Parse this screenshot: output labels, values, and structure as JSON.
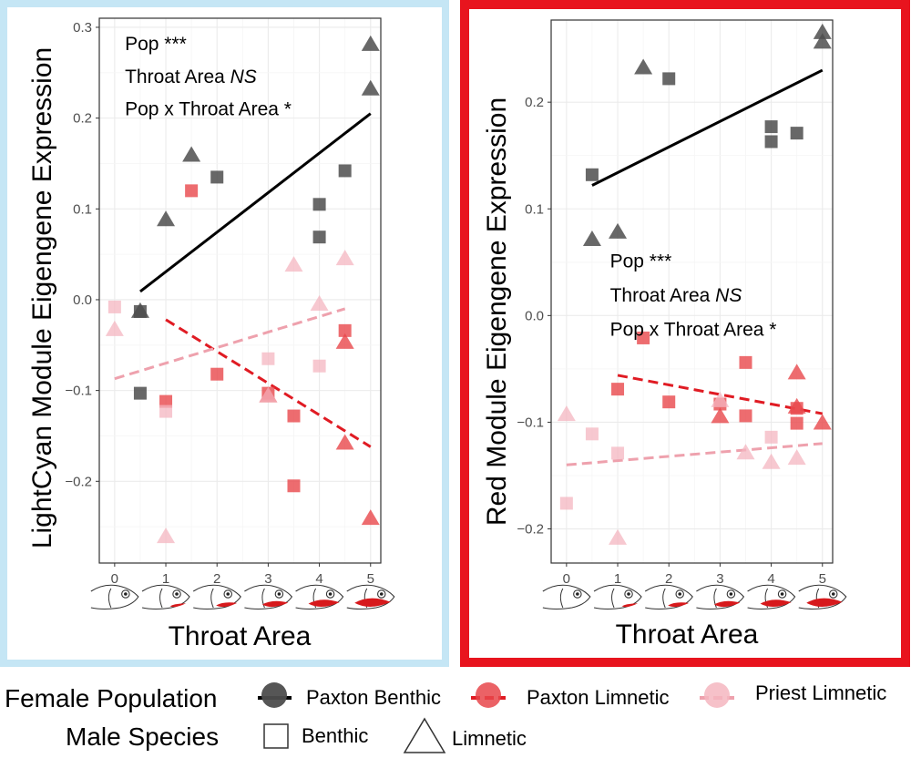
{
  "colors": {
    "paxton_benthic": "#4d4d4d",
    "paxton_limnetic": "#e8474b",
    "priest_limnetic": "#f4b6c0",
    "left_frame": "#c5e6f5",
    "right_frame": "#e8141e",
    "line_benthic": "#000000",
    "line_paxton_limnetic": "#e01b23",
    "line_priest_limnetic": "#eea1ad"
  },
  "chart_data": [
    {
      "type": "scatter",
      "id": "lightcyan",
      "xlabel": "Throat Area",
      "ylabel": "LightCyan Module Eigengene Expression",
      "xlim": [
        -0.3,
        5.2
      ],
      "ylim": [
        -0.29,
        0.31
      ],
      "xticks": [
        "0",
        "1",
        "2",
        "3",
        "4",
        "5"
      ],
      "yticks": [
        {
          "value": 0.3,
          "label": "0.3"
        },
        {
          "value": 0.2,
          "label": "0.2"
        },
        {
          "value": 0.1,
          "label": "0.1"
        },
        {
          "value": 0.0,
          "label": "0.0"
        },
        {
          "value": -0.1,
          "label": "−0.1"
        },
        {
          "value": -0.2,
          "label": "−0.2"
        }
      ],
      "annotation": [
        {
          "text": "Pop ***",
          "italic": ""
        },
        {
          "text": "Throat Area ",
          "italic": "NS"
        },
        {
          "text": "Pop x Throat Area *",
          "italic": ""
        }
      ],
      "annotation_pos": {
        "x": 0.2,
        "y": [
          0.283,
          0.247,
          0.211
        ]
      },
      "points": [
        {
          "pop": "paxton_benthic",
          "shape": "triangle",
          "x": 5,
          "y": 0.282
        },
        {
          "pop": "paxton_benthic",
          "shape": "triangle",
          "x": 5,
          "y": 0.233
        },
        {
          "pop": "paxton_benthic",
          "shape": "triangle",
          "x": 1.5,
          "y": 0.16
        },
        {
          "pop": "paxton_benthic",
          "shape": "triangle",
          "x": 1,
          "y": 0.089
        },
        {
          "pop": "paxton_benthic",
          "shape": "triangle",
          "x": 0.5,
          "y": -0.012
        },
        {
          "pop": "paxton_benthic",
          "shape": "square",
          "x": 4.5,
          "y": 0.142
        },
        {
          "pop": "paxton_benthic",
          "shape": "square",
          "x": 2,
          "y": 0.135
        },
        {
          "pop": "paxton_benthic",
          "shape": "square",
          "x": 4,
          "y": 0.105
        },
        {
          "pop": "paxton_benthic",
          "shape": "square",
          "x": 4,
          "y": 0.069
        },
        {
          "pop": "paxton_benthic",
          "shape": "square",
          "x": 0.5,
          "y": -0.013
        },
        {
          "pop": "paxton_benthic",
          "shape": "square",
          "x": 0.5,
          "y": -0.103
        },
        {
          "pop": "paxton_limnetic",
          "shape": "square",
          "x": 1.5,
          "y": 0.12
        },
        {
          "pop": "paxton_limnetic",
          "shape": "square",
          "x": 4.5,
          "y": -0.034
        },
        {
          "pop": "paxton_limnetic",
          "shape": "square",
          "x": 2,
          "y": -0.082
        },
        {
          "pop": "paxton_limnetic",
          "shape": "square",
          "x": 1,
          "y": -0.112
        },
        {
          "pop": "paxton_limnetic",
          "shape": "square",
          "x": 3,
          "y": -0.103
        },
        {
          "pop": "paxton_limnetic",
          "shape": "square",
          "x": 3.5,
          "y": -0.128
        },
        {
          "pop": "paxton_limnetic",
          "shape": "square",
          "x": 3.5,
          "y": -0.205
        },
        {
          "pop": "paxton_limnetic",
          "shape": "triangle",
          "x": 4.5,
          "y": -0.046
        },
        {
          "pop": "paxton_limnetic",
          "shape": "triangle",
          "x": 3,
          "y": -0.105
        },
        {
          "pop": "paxton_limnetic",
          "shape": "triangle",
          "x": 4.5,
          "y": -0.157
        },
        {
          "pop": "paxton_limnetic",
          "shape": "triangle",
          "x": 5,
          "y": -0.24
        },
        {
          "pop": "priest_limnetic",
          "shape": "square",
          "x": 0,
          "y": -0.008
        },
        {
          "pop": "priest_limnetic",
          "shape": "square",
          "x": 3,
          "y": -0.065
        },
        {
          "pop": "priest_limnetic",
          "shape": "square",
          "x": 4,
          "y": -0.073
        },
        {
          "pop": "priest_limnetic",
          "shape": "square",
          "x": 1,
          "y": -0.123
        },
        {
          "pop": "priest_limnetic",
          "shape": "triangle",
          "x": 4.5,
          "y": 0.046
        },
        {
          "pop": "priest_limnetic",
          "shape": "triangle",
          "x": 3.5,
          "y": 0.039
        },
        {
          "pop": "priest_limnetic",
          "shape": "triangle",
          "x": 4,
          "y": -0.004
        },
        {
          "pop": "priest_limnetic",
          "shape": "triangle",
          "x": 0,
          "y": -0.032
        },
        {
          "pop": "priest_limnetic",
          "shape": "triangle",
          "x": 3,
          "y": -0.105
        },
        {
          "pop": "priest_limnetic",
          "shape": "triangle",
          "x": 1,
          "y": -0.26
        }
      ],
      "fit_lines": [
        {
          "pop": "paxton_benthic",
          "dash": false,
          "x": [
            0.5,
            5
          ],
          "y": [
            0.009,
            0.205
          ]
        },
        {
          "pop": "paxton_limnetic",
          "dash": true,
          "x": [
            1,
            5
          ],
          "y": [
            -0.022,
            -0.162
          ]
        },
        {
          "pop": "priest_limnetic",
          "dash": true,
          "x": [
            0,
            4.5
          ],
          "y": [
            -0.087,
            -0.01
          ]
        }
      ]
    },
    {
      "type": "scatter",
      "id": "red",
      "xlabel": "Throat Area",
      "ylabel": "Red Module Eigengene Expression",
      "xlim": [
        -0.3,
        5.2
      ],
      "ylim": [
        -0.232,
        0.277
      ],
      "xticks": [
        "0",
        "1",
        "2",
        "3",
        "4",
        "5"
      ],
      "yticks": [
        {
          "value": 0.2,
          "label": "0.2"
        },
        {
          "value": 0.1,
          "label": "0.1"
        },
        {
          "value": 0.0,
          "label": "0.0"
        },
        {
          "value": -0.1,
          "label": "−0.1"
        },
        {
          "value": -0.2,
          "label": "−0.2"
        }
      ],
      "annotation": [
        {
          "text": "Pop ***",
          "italic": ""
        },
        {
          "text": "Throat Area ",
          "italic": "NS"
        },
        {
          "text": "Pop x Throat Area *",
          "italic": ""
        }
      ],
      "annotation_pos": {
        "x": 0.85,
        "y": [
          0.052,
          0.02,
          -0.012
        ]
      },
      "points": [
        {
          "pop": "paxton_benthic",
          "shape": "triangle",
          "x": 5,
          "y": 0.266
        },
        {
          "pop": "paxton_benthic",
          "shape": "triangle",
          "x": 5,
          "y": 0.257
        },
        {
          "pop": "paxton_benthic",
          "shape": "triangle",
          "x": 1.5,
          "y": 0.233
        },
        {
          "pop": "paxton_benthic",
          "shape": "triangle",
          "x": 1,
          "y": 0.079
        },
        {
          "pop": "paxton_benthic",
          "shape": "triangle",
          "x": 0.5,
          "y": 0.072
        },
        {
          "pop": "paxton_benthic",
          "shape": "square",
          "x": 2,
          "y": 0.222
        },
        {
          "pop": "paxton_benthic",
          "shape": "square",
          "x": 4,
          "y": 0.177
        },
        {
          "pop": "paxton_benthic",
          "shape": "square",
          "x": 4,
          "y": 0.163
        },
        {
          "pop": "paxton_benthic",
          "shape": "square",
          "x": 4.5,
          "y": 0.171
        },
        {
          "pop": "paxton_benthic",
          "shape": "square",
          "x": 0.5,
          "y": 0.132
        },
        {
          "pop": "paxton_limnetic",
          "shape": "square",
          "x": 1.5,
          "y": -0.021
        },
        {
          "pop": "paxton_limnetic",
          "shape": "square",
          "x": 3.5,
          "y": -0.044
        },
        {
          "pop": "paxton_limnetic",
          "shape": "square",
          "x": 1,
          "y": -0.069
        },
        {
          "pop": "paxton_limnetic",
          "shape": "square",
          "x": 2,
          "y": -0.081
        },
        {
          "pop": "paxton_limnetic",
          "shape": "square",
          "x": 3,
          "y": -0.083
        },
        {
          "pop": "paxton_limnetic",
          "shape": "square",
          "x": 3.5,
          "y": -0.094
        },
        {
          "pop": "paxton_limnetic",
          "shape": "square",
          "x": 4.5,
          "y": -0.087
        },
        {
          "pop": "paxton_limnetic",
          "shape": "square",
          "x": 4.5,
          "y": -0.101
        },
        {
          "pop": "paxton_limnetic",
          "shape": "triangle",
          "x": 4.5,
          "y": -0.053
        },
        {
          "pop": "paxton_limnetic",
          "shape": "triangle",
          "x": 3,
          "y": -0.094
        },
        {
          "pop": "paxton_limnetic",
          "shape": "triangle",
          "x": 4.5,
          "y": -0.085
        },
        {
          "pop": "paxton_limnetic",
          "shape": "triangle",
          "x": 5,
          "y": -0.1
        },
        {
          "pop": "priest_limnetic",
          "shape": "square",
          "x": 0.5,
          "y": -0.111
        },
        {
          "pop": "priest_limnetic",
          "shape": "square",
          "x": 1,
          "y": -0.129
        },
        {
          "pop": "priest_limnetic",
          "shape": "square",
          "x": 4,
          "y": -0.114
        },
        {
          "pop": "priest_limnetic",
          "shape": "square",
          "x": 0,
          "y": -0.176
        },
        {
          "pop": "priest_limnetic",
          "shape": "triangle",
          "x": 0,
          "y": -0.092
        },
        {
          "pop": "priest_limnetic",
          "shape": "triangle",
          "x": 3,
          "y": -0.079
        },
        {
          "pop": "priest_limnetic",
          "shape": "triangle",
          "x": 3.5,
          "y": -0.128
        },
        {
          "pop": "priest_limnetic",
          "shape": "triangle",
          "x": 4,
          "y": -0.137
        },
        {
          "pop": "priest_limnetic",
          "shape": "triangle",
          "x": 4.5,
          "y": -0.133
        },
        {
          "pop": "priest_limnetic",
          "shape": "triangle",
          "x": 1,
          "y": -0.208
        }
      ],
      "fit_lines": [
        {
          "pop": "paxton_benthic",
          "dash": false,
          "x": [
            0.5,
            5
          ],
          "y": [
            0.122,
            0.23
          ]
        },
        {
          "pop": "paxton_limnetic",
          "dash": true,
          "x": [
            1,
            5
          ],
          "y": [
            -0.056,
            -0.092
          ]
        },
        {
          "pop": "priest_limnetic",
          "dash": true,
          "x": [
            0,
            5
          ],
          "y": [
            -0.14,
            -0.12
          ]
        }
      ]
    }
  ],
  "fish_throat_levels": [
    0,
    1,
    2,
    3,
    4,
    5
  ],
  "legend": {
    "population_title": "Female Population",
    "populations": [
      {
        "key": "paxton_benthic",
        "label": "Paxton Benthic"
      },
      {
        "key": "paxton_limnetic",
        "label": "Paxton Limnetic"
      },
      {
        "key": "priest_limnetic",
        "label": "Priest Limnetic"
      }
    ],
    "species_title": "Male Species",
    "species": [
      {
        "key": "square",
        "label": "Benthic"
      },
      {
        "key": "triangle",
        "label": "Limnetic"
      }
    ]
  }
}
